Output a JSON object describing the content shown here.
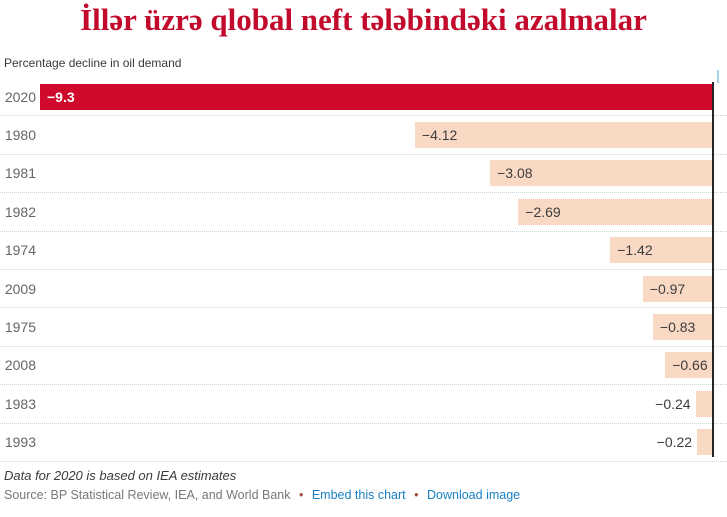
{
  "header": {
    "title": "İllər üzrə qlobal neft tələbindəki azalmalar",
    "subtitle": "Percentage decline in oil demand"
  },
  "chart_data": {
    "type": "bar",
    "orientation": "horizontal",
    "title": "İllər üzrə qlobal neft tələbindəki azalmalar",
    "subtitle": "Percentage decline in oil demand",
    "categories": [
      "2020",
      "1980",
      "1981",
      "1982",
      "1974",
      "2009",
      "1975",
      "2008",
      "1983",
      "1993"
    ],
    "values": [
      -9.3,
      -4.12,
      -3.08,
      -2.69,
      -1.42,
      -0.97,
      -0.83,
      -0.66,
      -0.24,
      -0.22
    ],
    "labels": [
      "−9.3",
      "−4.12",
      "−3.08",
      "−2.69",
      "−1.42",
      "−0.97",
      "−0.83",
      "−0.66",
      "−0.24",
      "−0.22"
    ],
    "xlim": [
      -9.3,
      0
    ],
    "zero_axis_position": "right",
    "grid": "dotted-row-separators",
    "highlight_category": "2020",
    "bar_color": "#f9d9c4",
    "highlight_color": "#cf0a2c",
    "value_label_color": "#3d3d3d",
    "highlight_label_color": "#ffffff",
    "axis_color": "#23272c"
  },
  "footer": {
    "note": "Data for 2020 is based on IEA estimates",
    "source": "Source: BP Statistical Review, IEA, and World Bank",
    "separator": "•",
    "links": [
      {
        "label": "Embed this chart"
      },
      {
        "label": "Download image"
      }
    ]
  },
  "colors": {
    "title": "#c20a2c",
    "link": "#1a80c3",
    "bullet": "#a14f44",
    "year_label": "#666666",
    "separator_dots": "#c9d4da"
  }
}
